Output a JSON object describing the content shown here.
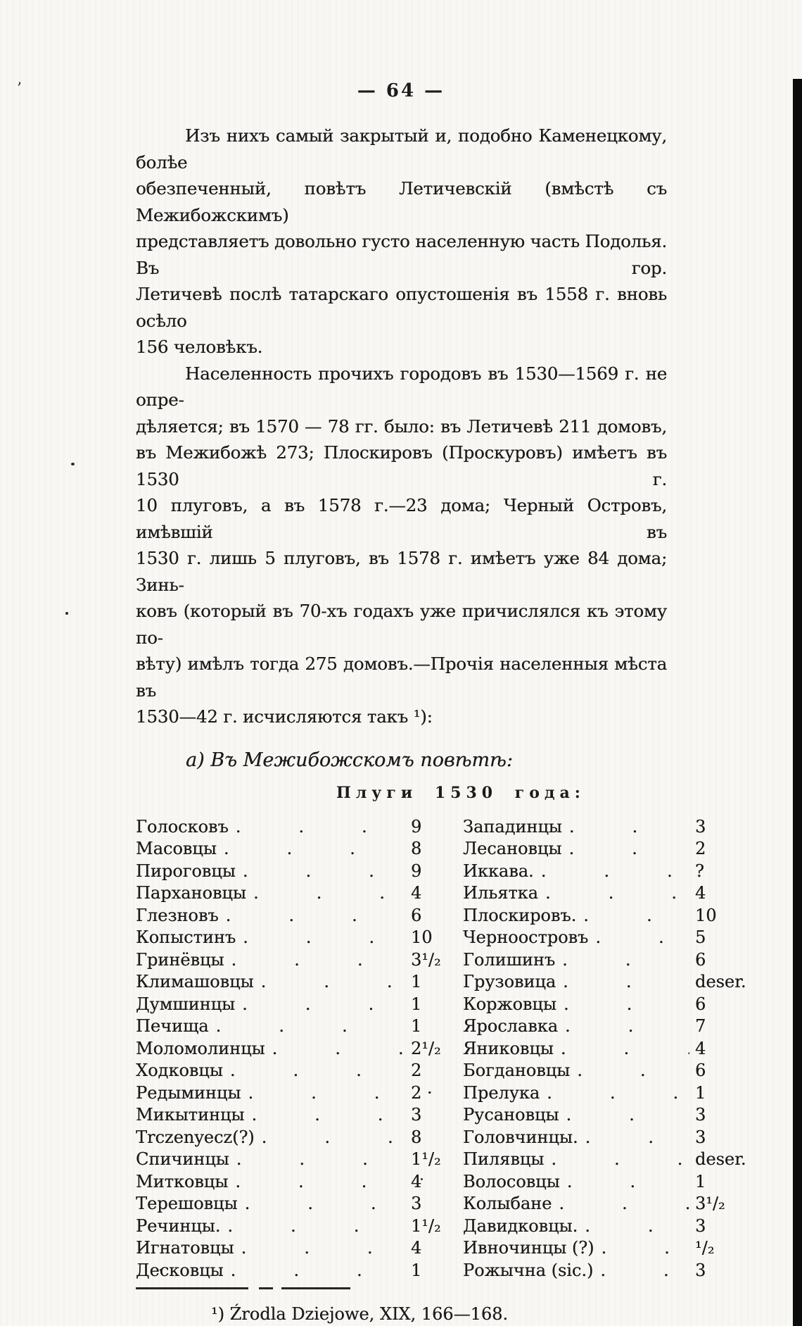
{
  "page": {
    "number": "— 64 —"
  },
  "content": {
    "paragraphs": [
      {
        "indent": true,
        "lines": [
          "Изъ нихъ самый закрытый и, подобно Каменецкому, болѣе",
          "обезпеченный, повѣтъ Летичевскій (вмѣстѣ съ Межибожскимъ)",
          "представляетъ довольно густо населенную часть Подолья. Въ гор.",
          "Летичевѣ послѣ татарскаго опустошенія въ 1558 г. вновь осѣло",
          "156 человѣкъ."
        ]
      },
      {
        "indent": true,
        "lines": [
          "Населенность прочихъ городовъ въ 1530—1569 г. не опре-",
          "дѣляется; въ 1570 — 78 гг. было: въ Летичевѣ 211 домовъ,",
          "въ Межибожѣ 273; Плоскировъ (Проскуровъ) имѣетъ въ 1530 г.",
          "10 плуговъ, а въ 1578 г.—23 дома; Черный Островъ, имѣвшій въ",
          "1530 г. лишь 5 плуговъ, въ 1578 г. имѣетъ уже 84 дома; Зинь-",
          "ковъ (который въ 70-хъ годахъ уже причислялся къ этому по-",
          "вѣту) имѣлъ тогда 275 домовъ.—Прочія населенныя мѣста въ",
          "1530—42 г. исчисляются такъ ¹):"
        ]
      }
    ],
    "subheading": "а) Въ Межибожскомъ повѣтѣ:",
    "table_title": "Плуги 1530 года:"
  },
  "table": {
    "left": [
      {
        "name": "Голосковъ",
        "value": "9"
      },
      {
        "name": "Масовцы",
        "value": "8"
      },
      {
        "name": "Пироговцы",
        "value": "9"
      },
      {
        "name": "Пархановцы",
        "value": "4"
      },
      {
        "name": "Глезновъ",
        "value": "6"
      },
      {
        "name": "Копыстинъ",
        "value": "10"
      },
      {
        "name": "Гринёвцы",
        "value": "3¹/₂"
      },
      {
        "name": "Климашовцы",
        "value": "1"
      },
      {
        "name": "Думшинцы",
        "value": "1"
      },
      {
        "name": "Печища",
        "value": "1"
      },
      {
        "name": "Моломолинцы",
        "value": "2¹/₂"
      },
      {
        "name": "Ходковцы",
        "value": "2"
      },
      {
        "name": "Редыминцы",
        "value": "2 ·"
      },
      {
        "name": "Микытинцы",
        "value": "3"
      },
      {
        "name": "Trczenyecz(?)",
        "value": "8"
      },
      {
        "name": "Спичинцы",
        "value": "1¹/₂"
      },
      {
        "name": "Митковцы",
        "value": "4"
      },
      {
        "name": "Терешовцы",
        "value": "3"
      },
      {
        "name": "Речинцы.",
        "value": "1¹/₂"
      },
      {
        "name": "Игнатовцы",
        "value": "4"
      },
      {
        "name": "Десковцы",
        "value": "1"
      }
    ],
    "right": [
      {
        "name": "Западинцы",
        "value": "3"
      },
      {
        "name": "Лесановцы",
        "value": "2"
      },
      {
        "name": "Иккава.",
        "value": "?"
      },
      {
        "name": "Ильятка",
        "value": "4"
      },
      {
        "name": "Плоскировъ.",
        "value": "10"
      },
      {
        "name": "Черноостровъ",
        "value": "5"
      },
      {
        "name": "Голишинъ",
        "value": "6"
      },
      {
        "name": "Грузовица",
        "value": "deser."
      },
      {
        "name": "Коржовцы",
        "value": "6"
      },
      {
        "name": "Ярославка",
        "value": "7"
      },
      {
        "name": "Яниковцы",
        "value": "4"
      },
      {
        "name": "Богдановцы",
        "value": "6"
      },
      {
        "name": "Прелука",
        "value": "1"
      },
      {
        "name": "Русановцы",
        "value": "3"
      },
      {
        "name": "Головчинцы.",
        "value": "3"
      },
      {
        "name": "Пилявцы",
        "value": "deser."
      },
      {
        "name": "Волосовцы",
        "value": "1"
      },
      {
        "name": "Колыбане",
        "value": "3¹/₂"
      },
      {
        "name": "Давидковцы.",
        "value": "3"
      },
      {
        "name": "Ивночинцы (?)",
        "value": "¹/₂"
      },
      {
        "name": "Рожычна (sic.)",
        "value": "3"
      }
    ]
  },
  "footnote": {
    "marker": "¹)",
    "text": "Źrodla Dziejowe, XIX, 166—168."
  },
  "colors": {
    "ink": "#1b1b1b",
    "paper": "#f8f7f4",
    "edge_bar": "#0b0b0b"
  }
}
